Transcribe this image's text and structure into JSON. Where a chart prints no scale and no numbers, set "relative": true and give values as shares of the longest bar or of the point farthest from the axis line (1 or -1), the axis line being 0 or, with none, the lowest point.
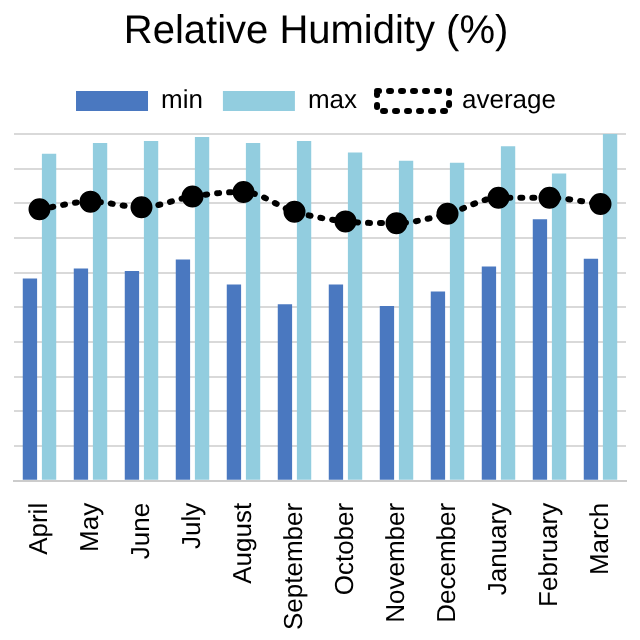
{
  "chart_data": {
    "type": "bar",
    "title": "Relative Humidity (%)",
    "relative": true,
    "grid": "y",
    "legend": "top",
    "categories": [
      "April",
      "May",
      "June",
      "July",
      "August",
      "September",
      "October",
      "November",
      "December",
      "January",
      "February",
      "March"
    ],
    "series": [
      {
        "name": "min",
        "color": "#4a78c0",
        "values": [
          0.583,
          0.612,
          0.605,
          0.638,
          0.566,
          0.509,
          0.566,
          0.504,
          0.546,
          0.618,
          0.754,
          0.64
        ]
      },
      {
        "name": "max",
        "color": "#92cddf",
        "values": [
          0.943,
          0.974,
          0.98,
          0.991,
          0.974,
          0.98,
          0.947,
          0.923,
          0.917,
          0.965,
          0.886,
          1
        ]
      },
      {
        "name": "average",
        "type": "line",
        "color": "#000000",
        "marker": "circle",
        "line_style": "dotted",
        "values": [
          0.783,
          0.805,
          0.789,
          0.82,
          0.833,
          0.776,
          0.748,
          0.743,
          0.77,
          0.816,
          0.816,
          0.798
        ]
      }
    ]
  }
}
